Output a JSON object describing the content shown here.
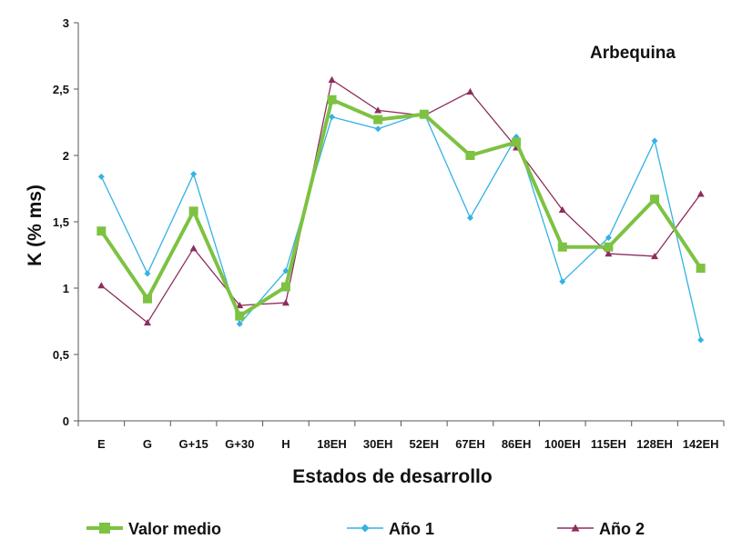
{
  "chart_data": {
    "type": "line",
    "title": "Arbequina",
    "xlabel": "Estados de desarrollo",
    "ylabel": "K (% ms)",
    "ylim": [
      0,
      3
    ],
    "yticks": [
      "0",
      "0,5",
      "1",
      "1,5",
      "2",
      "2,5",
      "3"
    ],
    "grid": false,
    "legend_position": "bottom",
    "categories": [
      "E",
      "G",
      "G+15",
      "G+30",
      "H",
      "18EH",
      "30EH",
      "52EH",
      "67EH",
      "86EH",
      "100EH",
      "115EH",
      "128EH",
      "142EH"
    ],
    "series": [
      {
        "name": "Valor medio",
        "color": "#7DC242",
        "marker": "square",
        "values": [
          1.43,
          0.92,
          1.58,
          0.79,
          1.01,
          2.42,
          2.27,
          2.31,
          2.0,
          2.1,
          1.31,
          1.31,
          1.67,
          1.15
        ]
      },
      {
        "name": "Año 1",
        "color": "#33B2E6",
        "marker": "diamond",
        "values": [
          1.84,
          1.11,
          1.86,
          0.73,
          1.13,
          2.29,
          2.2,
          2.32,
          1.53,
          2.14,
          1.05,
          1.38,
          2.11,
          0.61
        ]
      },
      {
        "name": "Año 2",
        "color": "#8E2D5D",
        "marker": "triangle",
        "values": [
          1.02,
          0.74,
          1.3,
          0.87,
          0.89,
          2.57,
          2.34,
          2.3,
          2.48,
          2.06,
          1.59,
          1.26,
          1.24,
          1.71
        ]
      }
    ]
  }
}
